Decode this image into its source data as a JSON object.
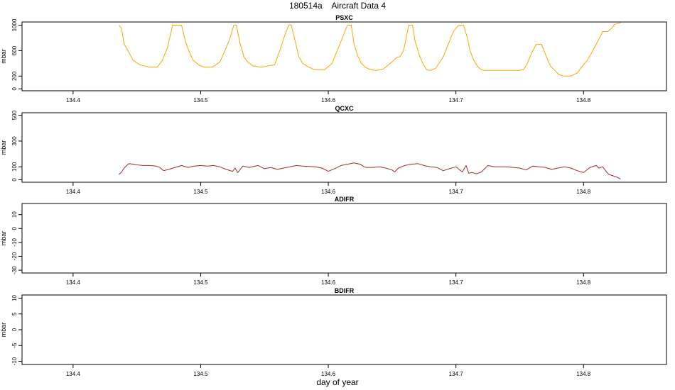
{
  "figure": {
    "title": "180514a    Aircraft Data 4",
    "xlabel": "day of year"
  },
  "colors": {
    "psxc": "#FFA500",
    "qcxc": "#A52A2A",
    "frame": "#000000"
  },
  "chart_data": [
    {
      "type": "line",
      "title": "PSXC",
      "xlabel": "",
      "ylabel": "mbar",
      "xlim": [
        134.36,
        134.865
      ],
      "ylim": [
        -30,
        1050
      ],
      "xticks": [
        134.4,
        134.5,
        134.6,
        134.7,
        134.8
      ],
      "xtick_labels": [
        "134.4",
        "134.5",
        "134.6",
        "134.7",
        "134.8"
      ],
      "yticks": [
        0,
        200,
        600,
        1000
      ],
      "ytick_labels": [
        "0",
        "200",
        "600",
        "1000"
      ],
      "series": [
        {
          "color": "#FFA500",
          "x": [
            134.436,
            134.438,
            134.44,
            134.443,
            134.447,
            134.452,
            134.46,
            134.466,
            134.47,
            134.474,
            134.478,
            134.481,
            134.485,
            134.488,
            134.491,
            134.494,
            134.499,
            134.503,
            134.509,
            134.515,
            134.519,
            134.523,
            134.526,
            134.528,
            134.531,
            134.534,
            134.537,
            134.541,
            134.547,
            134.558,
            134.562,
            134.566,
            134.569,
            134.571,
            134.574,
            134.577,
            134.58,
            134.584,
            134.589,
            134.597,
            134.603,
            134.607,
            134.611,
            134.615,
            134.618,
            134.62,
            134.623,
            134.626,
            134.629,
            134.632,
            134.637,
            134.643,
            134.651,
            134.654,
            134.656,
            134.659,
            134.661,
            134.663,
            134.666,
            134.668,
            134.671,
            134.674,
            134.677,
            134.68,
            134.684,
            134.69,
            134.694,
            134.698,
            134.702,
            134.706,
            134.709,
            134.711,
            134.714,
            134.717,
            134.72,
            134.723,
            134.727,
            134.732,
            134.75,
            134.753,
            134.756,
            134.759,
            134.763,
            134.767,
            134.771,
            134.774,
            134.777,
            134.781,
            134.785,
            134.79,
            134.795,
            134.8,
            134.803,
            134.806,
            134.81,
            134.815,
            134.819,
            134.822,
            134.824,
            134.826,
            134.829
          ],
          "y": [
            1000,
            950,
            700,
            600,
            450,
            380,
            340,
            340,
            450,
            650,
            1000,
            1000,
            1000,
            750,
            580,
            450,
            370,
            340,
            340,
            420,
            600,
            800,
            1000,
            1000,
            700,
            500,
            420,
            360,
            340,
            380,
            600,
            850,
            1000,
            1000,
            750,
            500,
            400,
            350,
            300,
            300,
            400,
            600,
            800,
            1000,
            1000,
            720,
            520,
            400,
            340,
            310,
            290,
            310,
            440,
            500,
            500,
            600,
            800,
            1000,
            1000,
            750,
            550,
            400,
            300,
            290,
            320,
            500,
            700,
            900,
            1000,
            1000,
            800,
            600,
            450,
            350,
            300,
            290,
            290,
            290,
            290,
            300,
            400,
            550,
            700,
            700,
            500,
            360,
            300,
            220,
            200,
            200,
            250,
            380,
            450,
            550,
            700,
            900,
            900,
            950,
            1010,
            1020,
            1040
          ]
        }
      ]
    },
    {
      "type": "line",
      "title": "QCXC",
      "xlabel": "",
      "ylabel": "mbar",
      "xlim": [
        134.36,
        134.865
      ],
      "ylim": [
        -20,
        520
      ],
      "xticks": [
        134.4,
        134.5,
        134.6,
        134.7,
        134.8
      ],
      "xtick_labels": [
        "134.4",
        "134.5",
        "134.6",
        "134.7",
        "134.8"
      ],
      "yticks": [
        0,
        100,
        300,
        500
      ],
      "ytick_labels": [
        "0",
        "100",
        "300",
        "500"
      ],
      "series": [
        {
          "color": "#A52A2A",
          "x": [
            134.436,
            134.438,
            134.44,
            134.442,
            134.444,
            134.447,
            134.45,
            134.455,
            134.46,
            134.465,
            134.468,
            134.471,
            134.475,
            134.48,
            134.485,
            134.49,
            134.495,
            134.5,
            134.505,
            134.51,
            134.515,
            134.52,
            134.525,
            134.527,
            134.529,
            134.531,
            134.533,
            134.538,
            134.545,
            134.55,
            134.555,
            134.56,
            134.565,
            134.57,
            134.575,
            134.58,
            134.59,
            134.595,
            134.6,
            134.605,
            134.61,
            134.615,
            134.62,
            134.625,
            134.628,
            134.63,
            134.635,
            134.64,
            134.645,
            134.65,
            134.652,
            134.655,
            134.66,
            134.665,
            134.67,
            134.675,
            134.68,
            134.685,
            134.69,
            134.695,
            134.7,
            134.705,
            134.708,
            134.71,
            134.713,
            134.716,
            134.72,
            134.725,
            134.73,
            134.74,
            134.75,
            134.755,
            134.76,
            134.765,
            134.77,
            134.775,
            134.78,
            134.785,
            134.79,
            134.795,
            134.8,
            134.805,
            134.81,
            134.812,
            134.815,
            134.818,
            134.82,
            134.823,
            134.826,
            134.829
          ],
          "y": [
            40,
            60,
            90,
            110,
            125,
            120,
            115,
            110,
            110,
            105,
            95,
            70,
            80,
            95,
            110,
            95,
            105,
            110,
            105,
            110,
            100,
            80,
            65,
            90,
            55,
            80,
            105,
            95,
            110,
            85,
            95,
            80,
            90,
            100,
            110,
            105,
            100,
            90,
            65,
            85,
            110,
            120,
            130,
            120,
            100,
            95,
            95,
            100,
            90,
            75,
            60,
            90,
            110,
            120,
            125,
            110,
            100,
            95,
            70,
            85,
            100,
            60,
            110,
            50,
            55,
            45,
            60,
            110,
            100,
            100,
            90,
            75,
            105,
            100,
            95,
            80,
            90,
            100,
            90,
            70,
            55,
            95,
            110,
            90,
            100,
            60,
            40,
            30,
            20,
            5
          ]
        }
      ]
    },
    {
      "type": "line",
      "title": "ADIFR",
      "xlabel": "",
      "ylabel": "mbar",
      "xlim": [
        134.36,
        134.865
      ],
      "ylim": [
        -32,
        18
      ],
      "xticks": [
        134.4,
        134.5,
        134.6,
        134.7,
        134.8
      ],
      "xtick_labels": [
        "134.4",
        "134.5",
        "134.6",
        "134.7",
        "134.8"
      ],
      "yticks": [
        -30,
        -20,
        -10,
        0,
        10
      ],
      "ytick_labels": [
        "-30",
        "-20",
        "-10",
        "0",
        "10"
      ],
      "series": []
    },
    {
      "type": "line",
      "title": "BDIFR",
      "xlabel": "",
      "ylabel": "mbar",
      "xlim": [
        134.36,
        134.865
      ],
      "ylim": [
        -11,
        11
      ],
      "xticks": [
        134.4,
        134.5,
        134.6,
        134.7,
        134.8
      ],
      "xtick_labels": [
        "134.4",
        "134.5",
        "134.6",
        "134.7",
        "134.8"
      ],
      "yticks": [
        -10,
        -5,
        0,
        5,
        10
      ],
      "ytick_labels": [
        "-10",
        "-5",
        "0",
        "5",
        "10"
      ],
      "series": []
    }
  ]
}
